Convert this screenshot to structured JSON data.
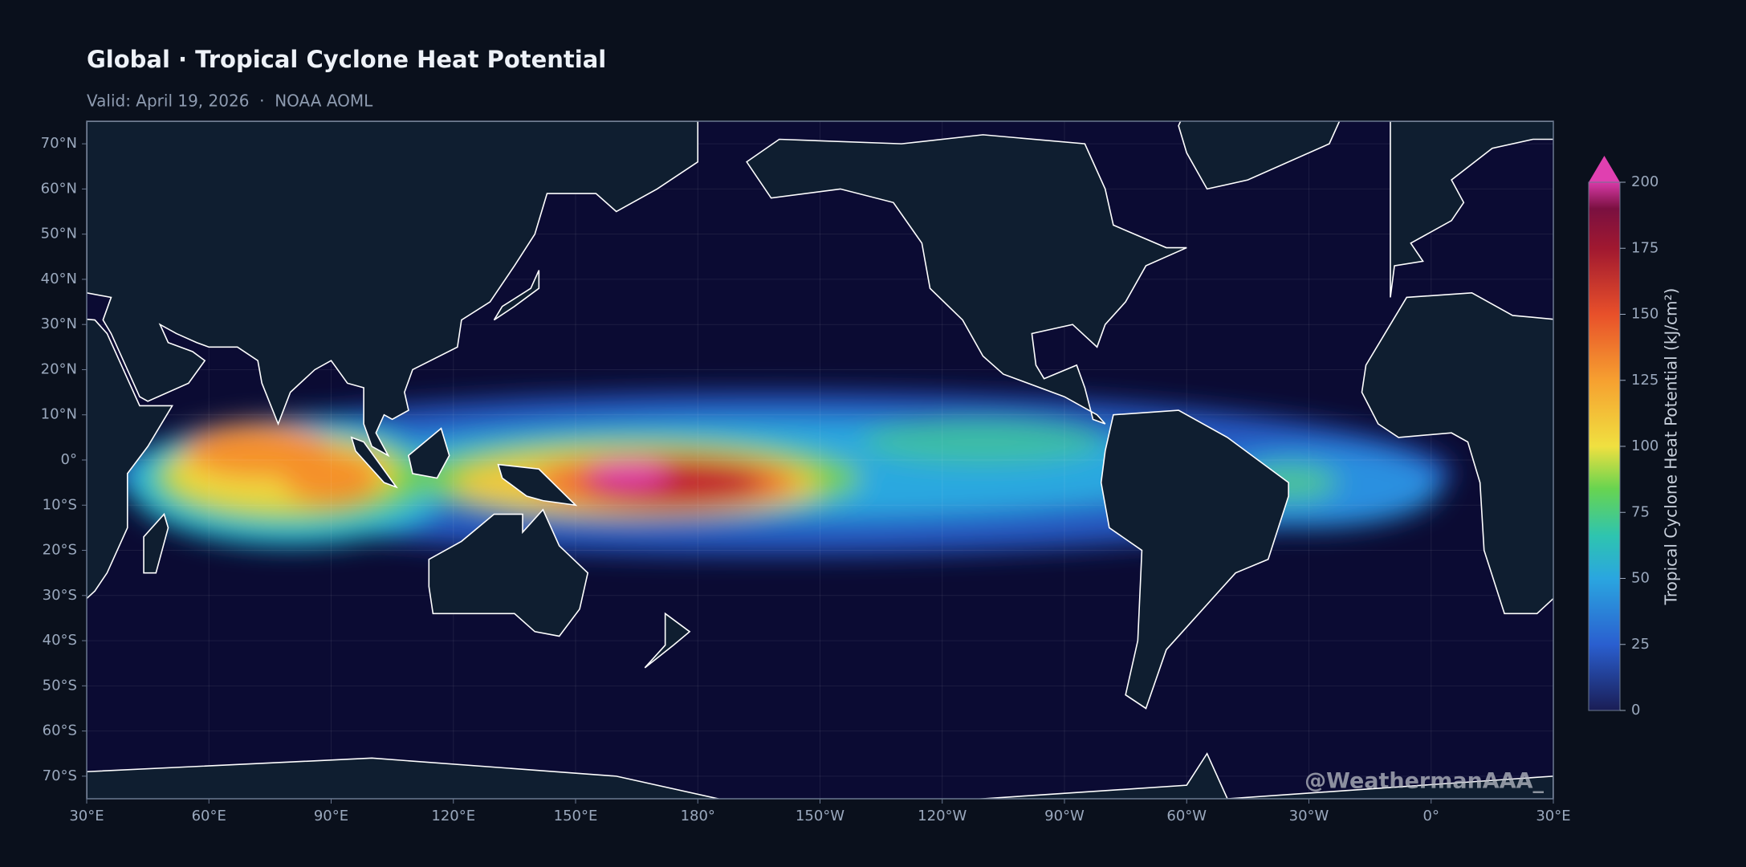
{
  "header": {
    "title": "Global · Tropical Cyclone Heat Potential",
    "subtitle": "Valid: April 19, 2026  ·  NOAA AOML"
  },
  "map": {
    "lon_range": [
      30,
      390
    ],
    "lat_range": [
      -75,
      75
    ],
    "lat_ticks": [
      {
        "value": 70,
        "label": "70°N"
      },
      {
        "value": 60,
        "label": "60°N"
      },
      {
        "value": 50,
        "label": "50°N"
      },
      {
        "value": 40,
        "label": "40°N"
      },
      {
        "value": 30,
        "label": "30°N"
      },
      {
        "value": 20,
        "label": "20°N"
      },
      {
        "value": 10,
        "label": "10°N"
      },
      {
        "value": 0,
        "label": "0°"
      },
      {
        "value": -10,
        "label": "10°S"
      },
      {
        "value": -20,
        "label": "20°S"
      },
      {
        "value": -30,
        "label": "30°S"
      },
      {
        "value": -40,
        "label": "40°S"
      },
      {
        "value": -50,
        "label": "50°S"
      },
      {
        "value": -60,
        "label": "60°S"
      },
      {
        "value": -70,
        "label": "70°S"
      }
    ],
    "lon_ticks": [
      {
        "value": 30,
        "label": "30°E"
      },
      {
        "value": 60,
        "label": "60°E"
      },
      {
        "value": 90,
        "label": "90°E"
      },
      {
        "value": 120,
        "label": "120°E"
      },
      {
        "value": 150,
        "label": "150°E"
      },
      {
        "value": 180,
        "label": "180°"
      },
      {
        "value": 210,
        "label": "150°W"
      },
      {
        "value": 240,
        "label": "120°W"
      },
      {
        "value": 270,
        "label": "90°W"
      },
      {
        "value": 300,
        "label": "60°W"
      },
      {
        "value": 330,
        "label": "30°W"
      },
      {
        "value": 360,
        "label": "0°"
      },
      {
        "value": 390,
        "label": "30°E"
      }
    ],
    "colorbar": {
      "label": "Tropical Cyclone Heat Potential (kJ/cm²)",
      "range": [
        0,
        200
      ],
      "ticks": [
        0,
        25,
        50,
        75,
        100,
        125,
        150,
        175,
        200
      ]
    }
  },
  "watermark": "@WeathermanAAA_"
}
